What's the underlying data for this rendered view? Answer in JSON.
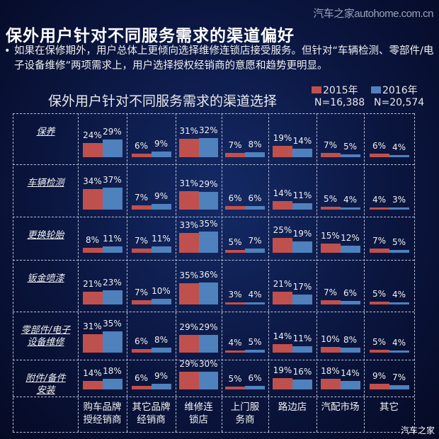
{
  "watermark": "汽车之家autohome.com.cn",
  "footer_logo": "汽车之家",
  "title": "保外用户针对不同服务需求的渠道偏好",
  "bullet": "如果在保修期外，用户总体上更倾向选择维修连锁店接受服务。但针对“车辆检测、零部件/电子设备维修”两项需求上，用户选择授权经销商的意愿和趋势更明显。",
  "colors": {
    "s2015": "#c0504d",
    "s2016": "#4f81bd"
  },
  "chart_data": {
    "type": "bar",
    "title": "保外用户针对不同服务需求的渠道选择",
    "unit": "%",
    "legend": [
      {
        "name": "2015年",
        "n": "N=16,388"
      },
      {
        "name": "2016年",
        "n": "N=20,574"
      }
    ],
    "legend_position": "top-right",
    "grid": true,
    "columns": [
      "购车品牌\n授经销商",
      "其它品牌\n经销商",
      "维修连\n锁店",
      "上门服\n务商",
      "路边店",
      "汽配市场",
      "其它"
    ],
    "rows": [
      {
        "name": "保养",
        "v2015": [
          24,
          6,
          31,
          7,
          19,
          7,
          6
        ],
        "v2016": [
          29,
          9,
          32,
          8,
          14,
          5,
          4
        ]
      },
      {
        "name": "车辆检测",
        "v2015": [
          34,
          7,
          31,
          6,
          14,
          5,
          4
        ],
        "v2016": [
          37,
          9,
          29,
          6,
          11,
          4,
          3
        ]
      },
      {
        "name": "更换轮胎",
        "v2015": [
          8,
          7,
          33,
          5,
          25,
          15,
          7
        ],
        "v2016": [
          11,
          11,
          35,
          7,
          19,
          12,
          5
        ]
      },
      {
        "name": "钣金喷漆",
        "v2015": [
          21,
          7,
          35,
          3,
          21,
          7,
          5
        ],
        "v2016": [
          23,
          10,
          36,
          4,
          17,
          6,
          4
        ]
      },
      {
        "name": "零部件/电子\n设备维修",
        "v2015": [
          31,
          6,
          29,
          4,
          14,
          10,
          5
        ],
        "v2016": [
          35,
          8,
          29,
          5,
          11,
          8,
          4
        ]
      },
      {
        "name": "附件/备件\n安装",
        "v2015": [
          14,
          6,
          29,
          5,
          19,
          18,
          9
        ],
        "v2016": [
          18,
          9,
          30,
          6,
          16,
          14,
          7
        ]
      }
    ]
  }
}
